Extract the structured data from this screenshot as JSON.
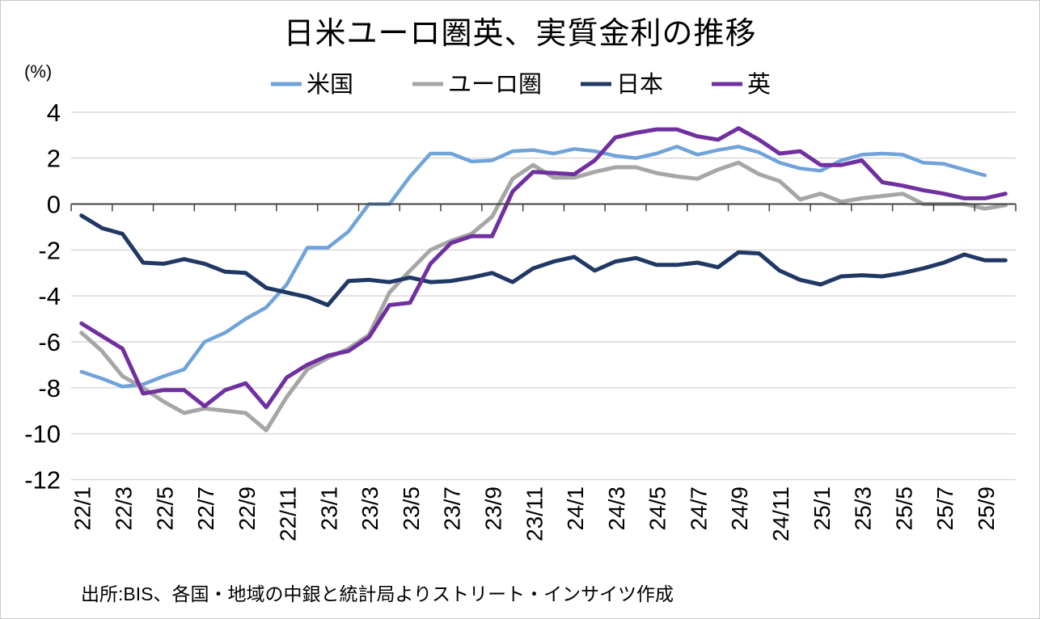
{
  "title": "日米ユーロ圏英、実質金利の推移",
  "y_axis": {
    "unit_label": "(%)",
    "ticks": [
      4,
      2,
      0,
      -2,
      -4,
      -6,
      -8,
      -10,
      -12
    ]
  },
  "footer": {
    "source": "出所:BIS、各国・地域の中銀と統計局よりストリート・インサイツ作成"
  },
  "colors": {
    "grid": "#D9D9D9",
    "axis": "#404040",
    "frame_border": "#C9C9C9",
    "us": "#6FA3D9",
    "eurozone": "#A6A6A6",
    "japan": "#1F3864",
    "uk": "#7030A0"
  },
  "chart_data": {
    "type": "line",
    "title": "日米ユーロ圏英、実質金利の推移",
    "ylabel": "(%)",
    "ylim": [
      -12,
      4
    ],
    "grid": true,
    "legend_position": "top",
    "x_labels_shown_every": 2,
    "x": [
      "22/1",
      "22/2",
      "22/3",
      "22/4",
      "22/5",
      "22/6",
      "22/7",
      "22/8",
      "22/9",
      "22/10",
      "22/11",
      "22/12",
      "23/1",
      "23/2",
      "23/3",
      "23/4",
      "23/5",
      "23/6",
      "23/7",
      "23/8",
      "23/9",
      "23/10",
      "23/11",
      "23/12",
      "24/1",
      "24/2",
      "24/3",
      "24/4",
      "24/5",
      "24/6",
      "24/7",
      "24/8",
      "24/9",
      "24/10",
      "24/11",
      "24/12",
      "25/1",
      "25/2",
      "25/3",
      "25/4",
      "25/5",
      "25/6",
      "25/7",
      "25/8",
      "25/9",
      "25/10"
    ],
    "series": [
      {
        "key": "us",
        "name": "米国",
        "color": "#6FA3D9",
        "stroke_width": 4.5,
        "values": [
          -7.3,
          -7.6,
          -7.95,
          -7.85,
          -7.5,
          -7.2,
          -6.0,
          -5.6,
          -5.0,
          -4.5,
          -3.5,
          -1.9,
          -1.9,
          -1.2,
          0.0,
          0.0,
          1.2,
          2.2,
          2.2,
          1.85,
          1.9,
          2.3,
          2.35,
          2.2,
          2.4,
          2.3,
          2.1,
          2.0,
          2.2,
          2.5,
          2.15,
          2.35,
          2.5,
          2.25,
          1.8,
          1.55,
          1.45,
          1.9,
          2.15,
          2.2,
          2.15,
          1.8,
          1.75,
          1.5,
          1.25,
          null
        ]
      },
      {
        "key": "eurozone",
        "name": "ユーロ圏",
        "color": "#A6A6A6",
        "stroke_width": 5,
        "values": [
          -5.6,
          -6.4,
          -7.5,
          -8.0,
          -8.6,
          -9.1,
          -8.9,
          -9.0,
          -9.1,
          -9.85,
          -8.4,
          -7.2,
          -6.7,
          -6.3,
          -5.7,
          -3.85,
          -2.9,
          -2.0,
          -1.6,
          -1.3,
          -0.55,
          1.1,
          1.7,
          1.15,
          1.15,
          1.4,
          1.6,
          1.6,
          1.35,
          1.2,
          1.1,
          1.5,
          1.8,
          1.3,
          1.0,
          0.2,
          0.45,
          0.1,
          0.25,
          0.35,
          0.45,
          0.0,
          0.0,
          0.0,
          -0.2,
          -0.05
        ]
      },
      {
        "key": "japan",
        "name": "日本",
        "color": "#1F3864",
        "stroke_width": 5,
        "values": [
          -0.5,
          -1.05,
          -1.3,
          -2.55,
          -2.6,
          -2.4,
          -2.6,
          -2.95,
          -3.0,
          -3.65,
          -3.85,
          -4.05,
          -4.4,
          -3.35,
          -3.3,
          -3.4,
          -3.2,
          -3.4,
          -3.35,
          -3.2,
          -3.0,
          -3.4,
          -2.8,
          -2.5,
          -2.3,
          -2.9,
          -2.5,
          -2.35,
          -2.65,
          -2.65,
          -2.55,
          -2.75,
          -2.1,
          -2.15,
          -2.9,
          -3.3,
          -3.5,
          -3.15,
          -3.1,
          -3.15,
          -3.0,
          -2.8,
          -2.55,
          -2.2,
          -2.45,
          -2.45
        ]
      },
      {
        "key": "uk",
        "name": "英",
        "color": "#7030A0",
        "stroke_width": 5,
        "values": [
          -5.2,
          -5.75,
          -6.3,
          -8.25,
          -8.1,
          -8.1,
          -8.8,
          -8.1,
          -7.8,
          -8.85,
          -7.55,
          -7.0,
          -6.6,
          -6.4,
          -5.8,
          -4.4,
          -4.3,
          -2.6,
          -1.7,
          -1.4,
          -1.4,
          0.55,
          1.4,
          1.35,
          1.3,
          1.9,
          2.9,
          3.1,
          3.25,
          3.25,
          2.95,
          2.8,
          3.3,
          2.8,
          2.2,
          2.3,
          1.7,
          1.7,
          1.9,
          0.95,
          0.8,
          0.6,
          0.45,
          0.25,
          0.25,
          0.45
        ]
      }
    ]
  }
}
